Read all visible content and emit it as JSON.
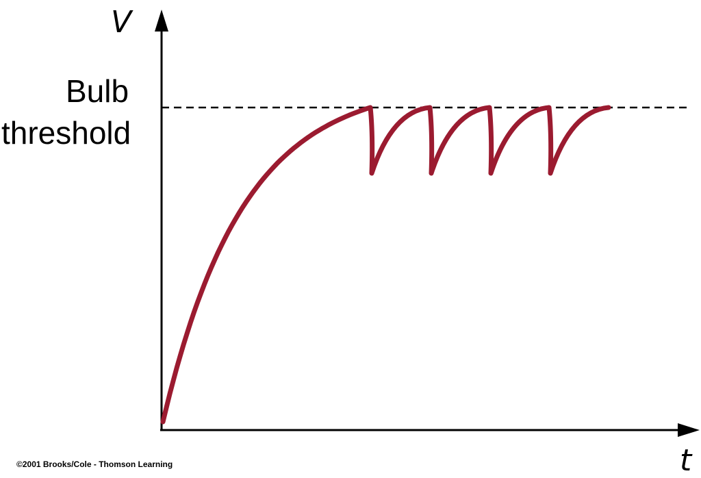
{
  "figure": {
    "y_axis_label": "V",
    "x_axis_label": "t",
    "threshold_label_line1": "Bulb",
    "threshold_label_line2": "threshold",
    "copyright": "©2001 Brooks/Cole - Thomson Learning"
  },
  "colors": {
    "curve": "#9b1b30",
    "axes": "#000000",
    "threshold_line": "#000000"
  },
  "chart_data": {
    "type": "line",
    "title": "",
    "xlabel": "t",
    "ylabel": "V",
    "reference_lines": [
      {
        "label": "Bulb threshold",
        "orientation": "horizontal",
        "style": "dashed",
        "y": 1.0
      }
    ],
    "curve": {
      "shape": "exponential charge to threshold, then sawtooth discharge/recharge",
      "sawtooth_cycles": 4,
      "low_level_fraction_of_threshold": 0.8
    }
  }
}
